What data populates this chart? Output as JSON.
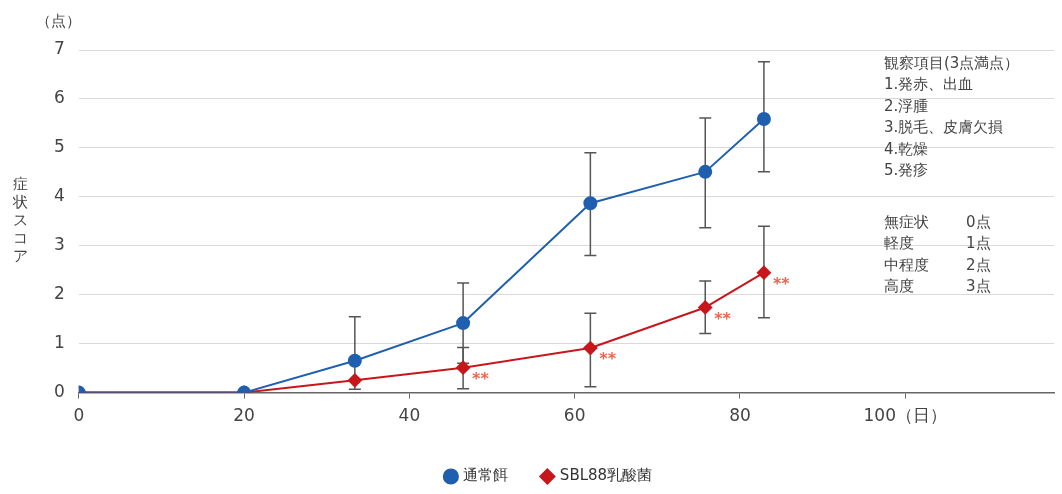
{
  "chart_data": {
    "type": "line",
    "ylabel": "症状スコア",
    "xlim": [
      0,
      118
    ],
    "ylim": [
      0,
      7
    ],
    "xticks": [
      0,
      20,
      40,
      60,
      80,
      {
        "value": 100,
        "label": "100（日）"
      }
    ],
    "yticks": [
      0,
      1,
      2,
      3,
      4,
      5,
      6,
      7
    ],
    "grid": "y",
    "legend": "bottom",
    "series": [
      {
        "name": "通常餌",
        "color": "#1f5fb0",
        "marker": "circle",
        "x": [
          0,
          20,
          33.4,
          46.5,
          61.9,
          75.8,
          82.9
        ],
        "values": [
          0,
          0,
          0.65,
          1.42,
          3.87,
          4.51,
          5.59
        ],
        "errors": [
          null,
          null,
          [
            0.07,
            1.55
          ],
          [
            0.6,
            2.24
          ],
          [
            2.8,
            4.9
          ],
          [
            3.37,
            5.61
          ],
          [
            4.51,
            6.76
          ]
        ]
      },
      {
        "name": "SBL88乳酸菌",
        "color": "#c8161d",
        "marker": "diamond",
        "x": [
          0,
          20,
          33.4,
          46.5,
          61.9,
          75.8,
          82.9
        ],
        "values": [
          0,
          0,
          0.25,
          0.51,
          0.91,
          1.74,
          2.45
        ],
        "errors": [
          null,
          null,
          null,
          [
            0.08,
            0.92
          ],
          [
            0.12,
            1.62
          ],
          [
            1.21,
            2.28
          ],
          [
            1.53,
            3.4
          ]
        ]
      }
    ],
    "annotations": [
      "（点）",
      "観察項目(3点満点）\n1.発赤、出血\n2.浮腫\n3.脱毛、皮膚欠損\n4.乾燥\n5.発疹",
      "無症状",
      "軽度",
      "中程度",
      "高度",
      "0点",
      "1点",
      "2点",
      "3点",
      {
        "text": "**",
        "x": 46.5,
        "y": 0.51
      },
      {
        "text": "**",
        "x": 61.9,
        "y": 0.91
      },
      {
        "text": "**",
        "x": 75.8,
        "y": 1.74
      },
      {
        "text": "**",
        "x": 82.9,
        "y": 2.45
      }
    ]
  }
}
